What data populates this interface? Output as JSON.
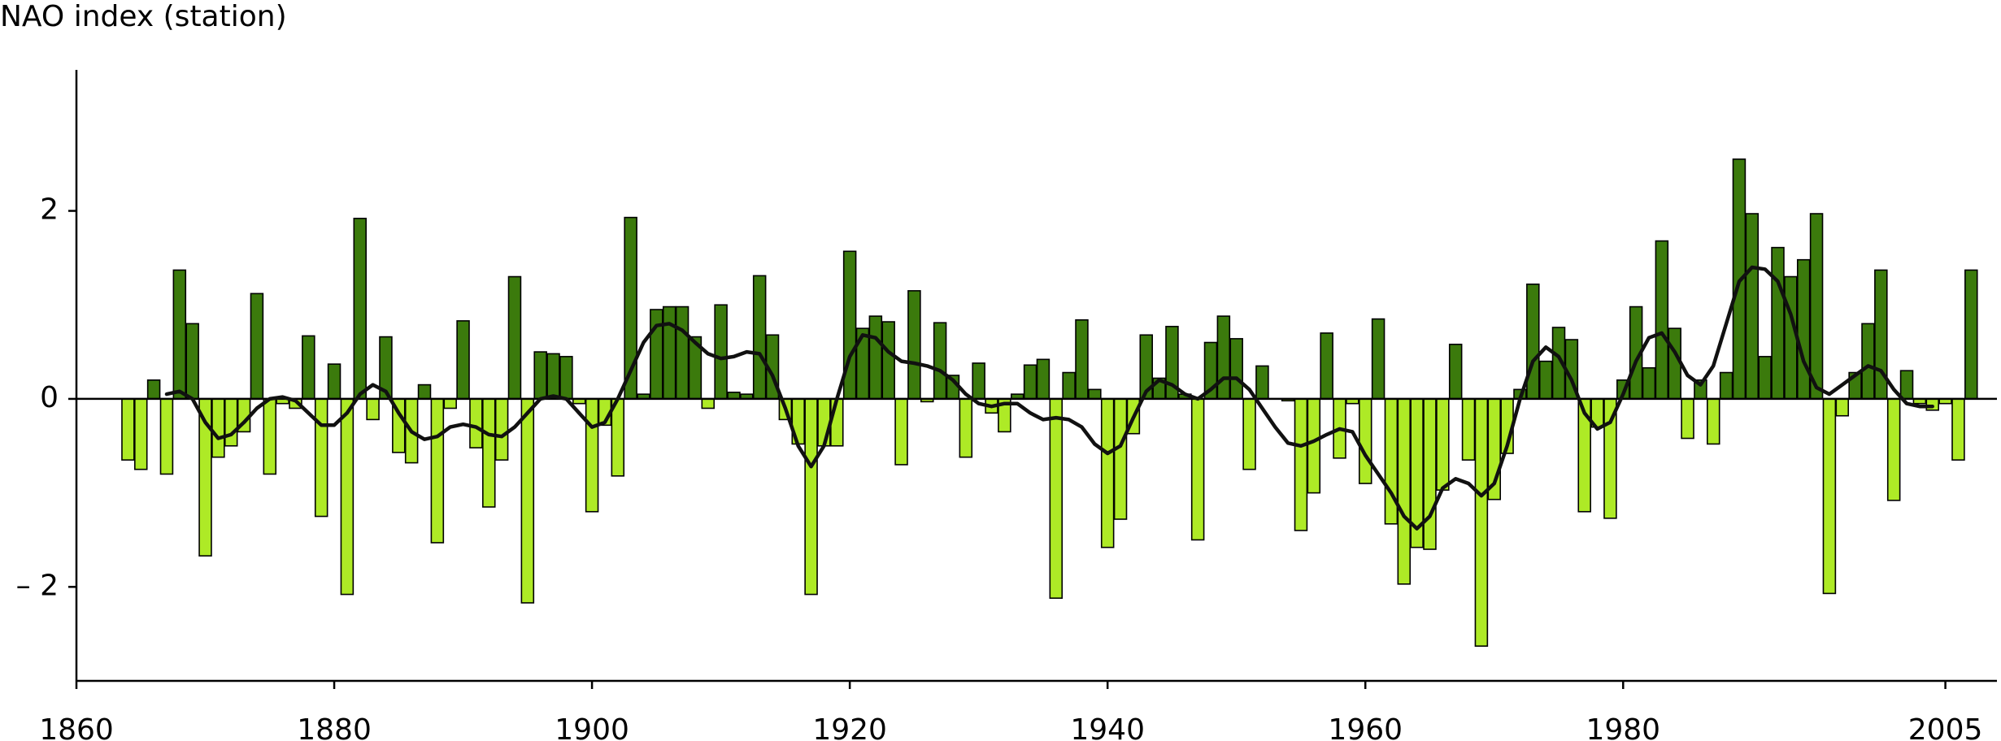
{
  "chart_data": {
    "type": "bar",
    "title": "NAO index (station)",
    "x": [
      1864,
      1865,
      1866,
      1867,
      1868,
      1869,
      1870,
      1871,
      1872,
      1873,
      1874,
      1875,
      1876,
      1877,
      1878,
      1879,
      1880,
      1881,
      1882,
      1883,
      1884,
      1885,
      1886,
      1887,
      1888,
      1889,
      1890,
      1891,
      1892,
      1893,
      1894,
      1895,
      1896,
      1897,
      1898,
      1899,
      1900,
      1901,
      1902,
      1903,
      1904,
      1905,
      1906,
      1907,
      1908,
      1909,
      1910,
      1911,
      1912,
      1913,
      1914,
      1915,
      1916,
      1917,
      1918,
      1919,
      1920,
      1921,
      1922,
      1923,
      1924,
      1925,
      1926,
      1927,
      1928,
      1929,
      1930,
      1931,
      1932,
      1933,
      1934,
      1935,
      1936,
      1937,
      1938,
      1939,
      1940,
      1941,
      1942,
      1943,
      1944,
      1945,
      1946,
      1947,
      1948,
      1949,
      1950,
      1951,
      1952,
      1953,
      1954,
      1955,
      1956,
      1957,
      1958,
      1959,
      1960,
      1961,
      1962,
      1963,
      1964,
      1965,
      1966,
      1967,
      1968,
      1969,
      1970,
      1971,
      1972,
      1973,
      1974,
      1975,
      1976,
      1977,
      1978,
      1979,
      1980,
      1981,
      1982,
      1983,
      1984,
      1985,
      1986,
      1987,
      1988,
      1989,
      1990,
      1991,
      1992,
      1993,
      1994,
      1995,
      1996,
      1997,
      1998,
      1999,
      2000,
      2001,
      2002,
      2003,
      2004,
      2005,
      2006,
      2007
    ],
    "values": [
      -0.65,
      -0.75,
      0.2,
      -0.8,
      1.37,
      0.8,
      -1.67,
      -0.62,
      -0.5,
      -0.35,
      1.12,
      -0.8,
      -0.05,
      -0.1,
      0.67,
      -1.25,
      0.37,
      -2.08,
      1.92,
      -0.22,
      0.66,
      -0.57,
      -0.68,
      0.15,
      -1.53,
      -0.1,
      0.83,
      -0.52,
      -1.15,
      -0.65,
      1.3,
      -2.17,
      0.5,
      0.48,
      0.45,
      -0.05,
      -1.2,
      -0.28,
      -0.82,
      1.93,
      0.05,
      0.95,
      0.98,
      0.98,
      0.66,
      -0.1,
      1.0,
      0.07,
      0.05,
      1.31,
      0.68,
      -0.22,
      -0.48,
      -2.08,
      -0.5,
      -0.5,
      1.57,
      0.75,
      0.88,
      0.82,
      -0.7,
      1.15,
      -0.03,
      0.81,
      0.25,
      -0.62,
      0.38,
      -0.15,
      -0.35,
      0.05,
      0.36,
      0.42,
      -2.12,
      0.28,
      0.84,
      0.1,
      -1.58,
      -1.28,
      -0.37,
      0.68,
      0.22,
      0.77,
      0.05,
      -1.5,
      0.6,
      0.88,
      0.64,
      -0.75,
      0.35,
      0.0,
      -0.02,
      -1.4,
      -1.0,
      0.7,
      -0.63,
      -0.05,
      -0.9,
      0.85,
      -1.33,
      -1.97,
      -1.58,
      -1.6,
      -0.97,
      0.58,
      -0.65,
      -2.63,
      -1.07,
      -0.58,
      0.1,
      1.22,
      0.4,
      0.76,
      0.63,
      -1.2,
      -0.3,
      -1.27,
      0.2,
      0.98,
      0.33,
      1.68,
      0.75,
      -0.42,
      0.2,
      -0.48,
      0.28,
      2.55,
      1.97,
      0.45,
      1.61,
      1.3,
      1.48,
      1.97,
      -2.07,
      -0.18,
      0.28,
      0.8,
      1.37,
      -1.08,
      0.3,
      -0.05,
      -0.12,
      -0.05,
      -0.65,
      1.37
    ],
    "positive_color": "#3b7a0c",
    "negative_color": "#aeea26",
    "line": {
      "color": "#111111",
      "x": [
        1867,
        1868,
        1869,
        1870,
        1871,
        1872,
        1873,
        1874,
        1875,
        1876,
        1877,
        1878,
        1879,
        1880,
        1881,
        1882,
        1883,
        1884,
        1885,
        1886,
        1887,
        1888,
        1889,
        1890,
        1891,
        1892,
        1893,
        1894,
        1895,
        1896,
        1897,
        1898,
        1899,
        1900,
        1901,
        1902,
        1903,
        1904,
        1905,
        1906,
        1907,
        1908,
        1909,
        1910,
        1911,
        1912,
        1913,
        1914,
        1915,
        1916,
        1917,
        1918,
        1919,
        1920,
        1921,
        1922,
        1923,
        1924,
        1925,
        1926,
        1927,
        1928,
        1929,
        1930,
        1931,
        1932,
        1933,
        1934,
        1935,
        1936,
        1937,
        1938,
        1939,
        1940,
        1941,
        1942,
        1943,
        1944,
        1945,
        1946,
        1947,
        1948,
        1949,
        1950,
        1951,
        1952,
        1953,
        1954,
        1955,
        1956,
        1957,
        1958,
        1959,
        1960,
        1961,
        1962,
        1963,
        1964,
        1965,
        1966,
        1967,
        1968,
        1969,
        1970,
        1971,
        1972,
        1973,
        1974,
        1975,
        1976,
        1977,
        1978,
        1979,
        1980,
        1981,
        1982,
        1983,
        1984,
        1985,
        1986,
        1987,
        1988,
        1989,
        1990,
        1991,
        1992,
        1993,
        1994,
        1995,
        1996,
        1997,
        1998,
        1999,
        2000,
        2001,
        2002,
        2003,
        2004
      ],
      "values": [
        0.05,
        0.08,
        0.0,
        -0.25,
        -0.42,
        -0.38,
        -0.25,
        -0.1,
        0.0,
        0.02,
        -0.02,
        -0.15,
        -0.28,
        -0.28,
        -0.15,
        0.05,
        0.15,
        0.08,
        -0.15,
        -0.35,
        -0.43,
        -0.4,
        -0.3,
        -0.27,
        -0.3,
        -0.38,
        -0.4,
        -0.3,
        -0.15,
        0.0,
        0.03,
        0.0,
        -0.15,
        -0.3,
        -0.25,
        0.0,
        0.3,
        0.6,
        0.78,
        0.8,
        0.73,
        0.6,
        0.48,
        0.43,
        0.45,
        0.5,
        0.48,
        0.25,
        -0.1,
        -0.5,
        -0.72,
        -0.5,
        0.0,
        0.45,
        0.68,
        0.65,
        0.5,
        0.4,
        0.38,
        0.35,
        0.3,
        0.2,
        0.05,
        -0.05,
        -0.08,
        -0.05,
        -0.05,
        -0.15,
        -0.22,
        -0.2,
        -0.22,
        -0.3,
        -0.48,
        -0.58,
        -0.5,
        -0.2,
        0.08,
        0.2,
        0.15,
        0.05,
        0.0,
        0.1,
        0.22,
        0.22,
        0.1,
        -0.1,
        -0.3,
        -0.47,
        -0.5,
        -0.45,
        -0.38,
        -0.32,
        -0.35,
        -0.6,
        -0.8,
        -1.0,
        -1.25,
        -1.38,
        -1.25,
        -0.95,
        -0.85,
        -0.9,
        -1.03,
        -0.9,
        -0.5,
        0.0,
        0.4,
        0.55,
        0.45,
        0.2,
        -0.15,
        -0.32,
        -0.25,
        0.05,
        0.4,
        0.65,
        0.7,
        0.5,
        0.25,
        0.15,
        0.35,
        0.8,
        1.25,
        1.4,
        1.38,
        1.25,
        0.9,
        0.4,
        0.12,
        0.05,
        0.15,
        0.25,
        0.35,
        0.3,
        0.1,
        -0.05,
        -0.08,
        -0.08
      ]
    },
    "xlim": [
      1860,
      2009
    ],
    "ylim": [
      -3,
      3.5
    ],
    "xticks": [
      1860,
      1880,
      1900,
      1920,
      1940,
      1960,
      1980,
      2005
    ],
    "yticks": [
      {
        "value": -2,
        "label": "– 2"
      },
      0,
      2
    ]
  }
}
